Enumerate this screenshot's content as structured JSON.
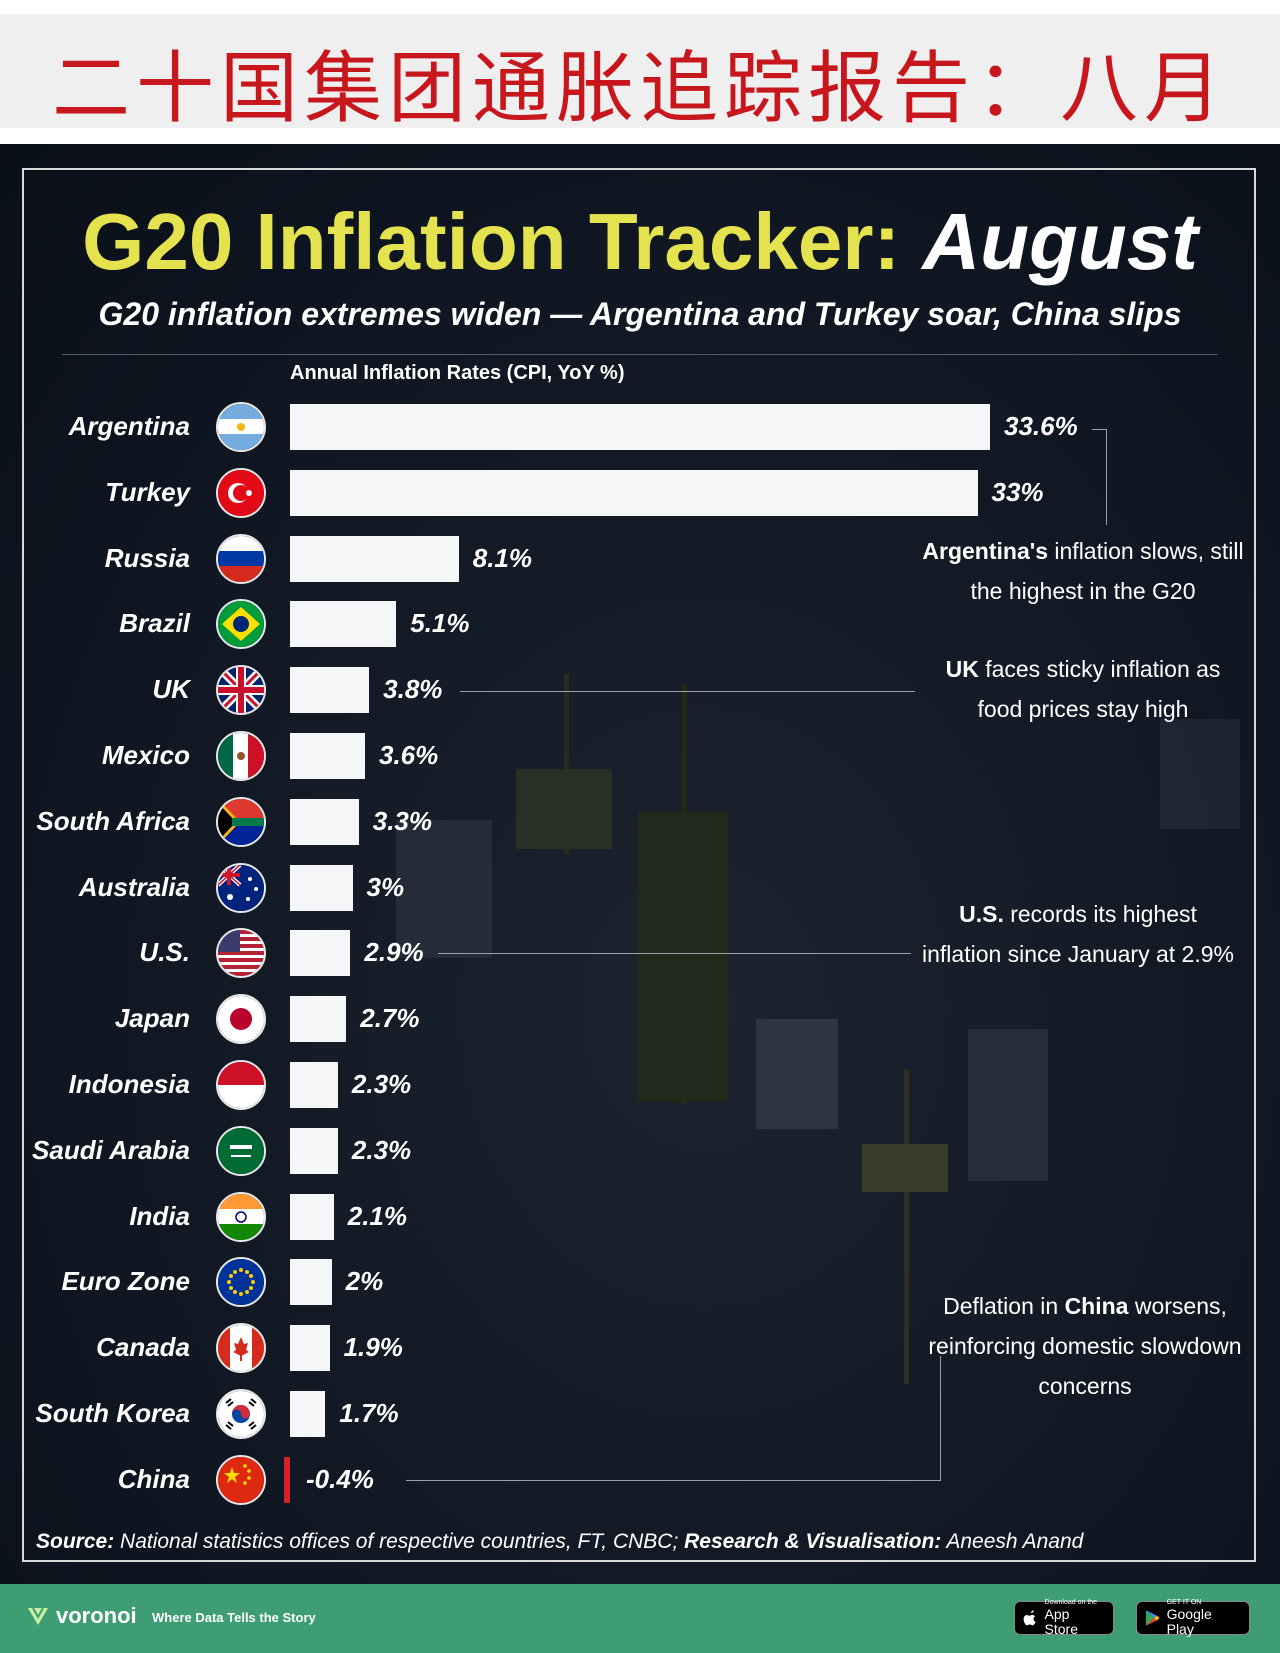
{
  "header_cn": "二十国集团通胀追踪报告：八月",
  "title": {
    "part1": "G20 Inflation Tracker:",
    "part2": "August"
  },
  "subtitle": "G20 inflation extremes widen — Argentina and Turkey soar, China slips",
  "chart_data": {
    "type": "bar",
    "orientation": "horizontal",
    "title": "G20 Inflation Tracker: August",
    "xlabel": "Annual Inflation Rates (CPI, YoY %)",
    "categories": [
      "Argentina",
      "Turkey",
      "Russia",
      "Brazil",
      "UK",
      "Mexico",
      "South Africa",
      "Australia",
      "U.S.",
      "Japan",
      "Indonesia",
      "Saudi Arabia",
      "India",
      "Euro Zone",
      "Canada",
      "South Korea",
      "China"
    ],
    "values": [
      33.6,
      33,
      8.1,
      5.1,
      3.8,
      3.6,
      3.3,
      3,
      2.9,
      2.7,
      2.3,
      2.3,
      2.1,
      2,
      1.9,
      1.7,
      -0.4
    ],
    "labels": [
      "33.6%",
      "33%",
      "8.1%",
      "5.1%",
      "3.8%",
      "3.6%",
      "3.3%",
      "3%",
      "2.9%",
      "2.7%",
      "2.3%",
      "2.3%",
      "2.1%",
      "2%",
      "1.9%",
      "1.7%",
      "-0.4%"
    ],
    "colors": {
      "positive": "#f5f6f7",
      "negative": "#d62027"
    },
    "xlim": [
      0,
      33.6
    ]
  },
  "notes": [
    {
      "bold": "Argentina's",
      "rest": " inflation slows, still the highest in the G20"
    },
    {
      "bold": "UK",
      "rest": " faces sticky inflation as food prices stay high"
    },
    {
      "bold": "U.S.",
      "rest": " records its highest inflation since January at 2.9%"
    },
    {
      "pre": "Deflation in ",
      "bold": "China",
      "rest": " worsens, reinforcing domestic slowdown concerns"
    }
  ],
  "source": {
    "label": "Source:",
    "text": " National statistics offices of respective countries, FT, CNBC; ",
    "credit_label": "Research & Visualisation:",
    "credit": " Aneesh Anand"
  },
  "footer": {
    "brand": "voronoi",
    "tagline": "Where Data Tells the Story",
    "app_store_small": "Download on the",
    "app_store": "App Store",
    "google_small": "GET IT ON",
    "google": "Google Play"
  },
  "theme": {
    "title_yellow": "#e4e24e",
    "footer_green": "#3e9d73",
    "header_red": "#c8161d"
  }
}
